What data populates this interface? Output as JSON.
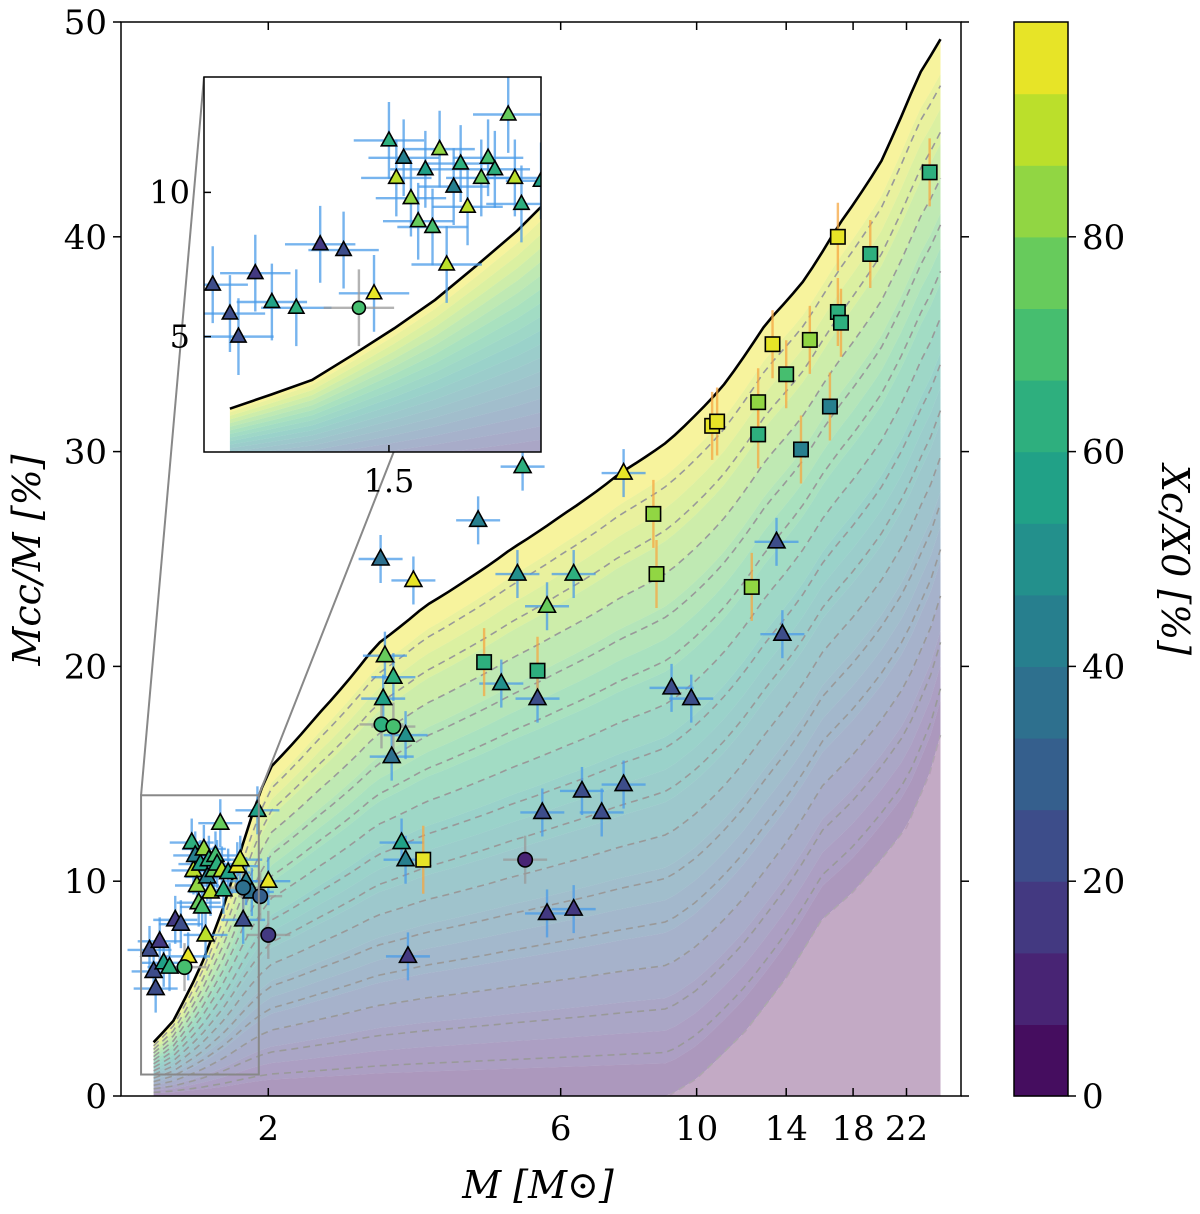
{
  "chart_data": {
    "type": "scatter",
    "title": "",
    "xlabel": "M [M⊙]",
    "ylabel": "Mcc/M [%]",
    "x_scale": "log",
    "xlim": [
      1.15,
      27
    ],
    "ylim": [
      0,
      50
    ],
    "x_ticks": [
      2,
      6,
      10,
      14,
      18,
      22
    ],
    "y_ticks": [
      0,
      10,
      20,
      30,
      40,
      50
    ],
    "grid": false,
    "colorbar": {
      "label": "Xc/X0 [%]",
      "range": [
        0,
        100
      ],
      "ticks": [
        0,
        20,
        40,
        60,
        80
      ],
      "levels": 15,
      "colormap": "viridis"
    },
    "upper_envelope": {
      "x": [
        1.3,
        1.4,
        1.55,
        1.7,
        1.85,
        2.0,
        2.4,
        3.0,
        3.6,
        4.2,
        5.0,
        6.0,
        7.5,
        9.0,
        11.0,
        13.0,
        15.0,
        17.0,
        20.0,
        23.0,
        25.0
      ],
      "y": [
        2.5,
        3.5,
        6.0,
        9.0,
        12.5,
        15.2,
        17.7,
        21.0,
        22.8,
        24.0,
        25.5,
        27.0,
        29.0,
        30.5,
        33.0,
        36.0,
        38.0,
        40.5,
        43.5,
        47.5,
        49.2
      ]
    },
    "lower_envelope": {
      "x": [
        9.0,
        10.0,
        12.0,
        14.0,
        16.0,
        18.0,
        20.0,
        22.0,
        24.0,
        25.0
      ],
      "y": [
        0.0,
        0.8,
        3.0,
        5.5,
        8.2,
        9.5,
        11.0,
        12.5,
        15.0,
        16.8
      ]
    },
    "right_edge": {
      "x": 25.0,
      "y_bottom": 16.8,
      "y_top": 49.2
    },
    "series": [
      {
        "name": "",
        "marker": "triangle",
        "points": [
          {
            "x": 1.28,
            "y": 6.8,
            "c": 20
          },
          {
            "x": 1.3,
            "y": 5.8,
            "c": 20
          },
          {
            "x": 1.31,
            "y": 5.0,
            "c": 25
          },
          {
            "x": 1.33,
            "y": 7.2,
            "c": 15
          },
          {
            "x": 1.35,
            "y": 6.2,
            "c": 55
          },
          {
            "x": 1.38,
            "y": 6.0,
            "c": 60
          },
          {
            "x": 1.41,
            "y": 8.2,
            "c": 15
          },
          {
            "x": 1.44,
            "y": 8.0,
            "c": 20
          },
          {
            "x": 1.48,
            "y": 6.5,
            "c": 95
          },
          {
            "x": 1.5,
            "y": 11.8,
            "c": 60
          },
          {
            "x": 1.51,
            "y": 10.5,
            "c": 90
          },
          {
            "x": 1.52,
            "y": 11.2,
            "c": 45
          },
          {
            "x": 1.53,
            "y": 9.8,
            "c": 80
          },
          {
            "x": 1.54,
            "y": 9.0,
            "c": 75
          },
          {
            "x": 1.55,
            "y": 10.8,
            "c": 55
          },
          {
            "x": 1.56,
            "y": 8.8,
            "c": 70
          },
          {
            "x": 1.57,
            "y": 11.5,
            "c": 85
          },
          {
            "x": 1.58,
            "y": 7.5,
            "c": 92
          },
          {
            "x": 1.59,
            "y": 10.2,
            "c": 40
          },
          {
            "x": 1.6,
            "y": 11.0,
            "c": 65
          },
          {
            "x": 1.61,
            "y": 9.5,
            "c": 88
          },
          {
            "x": 1.63,
            "y": 10.5,
            "c": 75
          },
          {
            "x": 1.64,
            "y": 11.2,
            "c": 70
          },
          {
            "x": 1.65,
            "y": 10.8,
            "c": 60
          },
          {
            "x": 1.67,
            "y": 12.7,
            "c": 75
          },
          {
            "x": 1.68,
            "y": 10.5,
            "c": 90
          },
          {
            "x": 1.69,
            "y": 9.6,
            "c": 60
          },
          {
            "x": 1.72,
            "y": 10.4,
            "c": 55
          },
          {
            "x": 1.78,
            "y": 10.7,
            "c": 95
          },
          {
            "x": 1.8,
            "y": 11.0,
            "c": 90
          },
          {
            "x": 1.82,
            "y": 8.2,
            "c": 25
          },
          {
            "x": 1.84,
            "y": 10.0,
            "c": 40
          },
          {
            "x": 1.88,
            "y": 9.5,
            "c": 35
          },
          {
            "x": 1.92,
            "y": 13.3,
            "c": 55
          },
          {
            "x": 2.0,
            "y": 10.0,
            "c": 95
          },
          {
            "x": 3.05,
            "y": 25.0,
            "c": 35
          },
          {
            "x": 3.1,
            "y": 20.5,
            "c": 75
          },
          {
            "x": 3.2,
            "y": 19.5,
            "c": 60
          },
          {
            "x": 3.08,
            "y": 18.5,
            "c": 55
          },
          {
            "x": 3.18,
            "y": 15.8,
            "c": 35
          },
          {
            "x": 3.35,
            "y": 16.8,
            "c": 50
          },
          {
            "x": 3.3,
            "y": 11.8,
            "c": 55
          },
          {
            "x": 3.35,
            "y": 11.0,
            "c": 40
          },
          {
            "x": 3.38,
            "y": 6.5,
            "c": 15
          },
          {
            "x": 3.45,
            "y": 24.0,
            "c": 95
          },
          {
            "x": 4.4,
            "y": 26.8,
            "c": 45
          },
          {
            "x": 4.8,
            "y": 19.2,
            "c": 50
          },
          {
            "x": 5.1,
            "y": 24.3,
            "c": 50
          },
          {
            "x": 5.2,
            "y": 29.3,
            "c": 60
          },
          {
            "x": 5.7,
            "y": 22.8,
            "c": 75
          },
          {
            "x": 5.5,
            "y": 18.5,
            "c": 25
          },
          {
            "x": 5.6,
            "y": 13.2,
            "c": 25
          },
          {
            "x": 6.3,
            "y": 24.3,
            "c": 60
          },
          {
            "x": 6.5,
            "y": 14.2,
            "c": 20
          },
          {
            "x": 7.0,
            "y": 13.2,
            "c": 20
          },
          {
            "x": 7.6,
            "y": 14.5,
            "c": 20
          },
          {
            "x": 5.7,
            "y": 8.5,
            "c": 15
          },
          {
            "x": 6.3,
            "y": 8.7,
            "c": 15
          },
          {
            "x": 7.6,
            "y": 29.0,
            "c": 95
          },
          {
            "x": 9.1,
            "y": 19.0,
            "c": 25
          },
          {
            "x": 9.8,
            "y": 18.5,
            "c": 20
          },
          {
            "x": 13.5,
            "y": 25.8,
            "c": 25
          },
          {
            "x": 13.8,
            "y": 21.5,
            "c": 25
          }
        ]
      },
      {
        "name": "",
        "marker": "circle",
        "points": [
          {
            "x": 1.46,
            "y": 6.0,
            "c": 70
          },
          {
            "x": 1.82,
            "y": 9.7,
            "c": 35
          },
          {
            "x": 1.94,
            "y": 9.3,
            "c": 30
          },
          {
            "x": 2.0,
            "y": 7.5,
            "c": 15
          },
          {
            "x": 3.06,
            "y": 17.3,
            "c": 65
          },
          {
            "x": 3.2,
            "y": 17.2,
            "c": 70
          },
          {
            "x": 5.25,
            "y": 11.0,
            "c": 10
          }
        ]
      },
      {
        "name": "",
        "marker": "square",
        "points": [
          {
            "x": 3.58,
            "y": 11.0,
            "c": 95
          },
          {
            "x": 4.5,
            "y": 20.2,
            "c": 65
          },
          {
            "x": 5.5,
            "y": 19.8,
            "c": 65
          },
          {
            "x": 8.5,
            "y": 27.1,
            "c": 85
          },
          {
            "x": 8.6,
            "y": 24.3,
            "c": 80
          },
          {
            "x": 10.6,
            "y": 31.2,
            "c": 95
          },
          {
            "x": 10.8,
            "y": 31.4,
            "c": 95
          },
          {
            "x": 12.3,
            "y": 23.7,
            "c": 80
          },
          {
            "x": 12.6,
            "y": 30.8,
            "c": 65
          },
          {
            "x": 12.6,
            "y": 32.3,
            "c": 80
          },
          {
            "x": 13.3,
            "y": 35.0,
            "c": 95
          },
          {
            "x": 14.0,
            "y": 33.6,
            "c": 70
          },
          {
            "x": 14.8,
            "y": 30.1,
            "c": 45
          },
          {
            "x": 15.3,
            "y": 35.2,
            "c": 80
          },
          {
            "x": 16.5,
            "y": 32.1,
            "c": 40
          },
          {
            "x": 17.0,
            "y": 36.5,
            "c": 60
          },
          {
            "x": 17.2,
            "y": 36.0,
            "c": 65
          },
          {
            "x": 17.0,
            "y": 40.0,
            "c": 95
          },
          {
            "x": 19.2,
            "y": 39.2,
            "c": 60
          },
          {
            "x": 24.0,
            "y": 43.0,
            "c": 65
          }
        ]
      }
    ],
    "inset": {
      "xlim": [
        1.27,
        1.72
      ],
      "ylim": [
        1.0,
        14.0
      ],
      "x_ticks": [
        1.5
      ],
      "y_ticks": [
        5,
        10
      ],
      "region_on_main": {
        "x": [
          1.24,
          1.93
        ],
        "y": [
          1.0,
          14.0
        ]
      }
    }
  }
}
